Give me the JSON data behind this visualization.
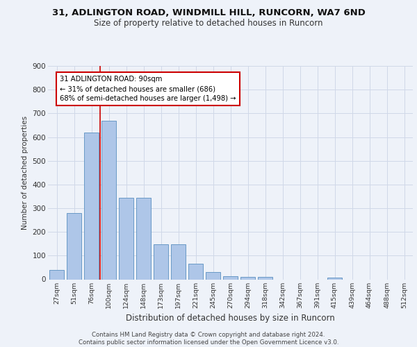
{
  "title1": "31, ADLINGTON ROAD, WINDMILL HILL, RUNCORN, WA7 6ND",
  "title2": "Size of property relative to detached houses in Runcorn",
  "xlabel": "Distribution of detached houses by size in Runcorn",
  "ylabel": "Number of detached properties",
  "categories": [
    "27sqm",
    "51sqm",
    "76sqm",
    "100sqm",
    "124sqm",
    "148sqm",
    "173sqm",
    "197sqm",
    "221sqm",
    "245sqm",
    "270sqm",
    "294sqm",
    "318sqm",
    "342sqm",
    "367sqm",
    "391sqm",
    "415sqm",
    "439sqm",
    "464sqm",
    "488sqm",
    "512sqm"
  ],
  "values": [
    40,
    280,
    620,
    668,
    345,
    345,
    148,
    148,
    65,
    30,
    14,
    11,
    10,
    0,
    0,
    0,
    8,
    0,
    0,
    0,
    0
  ],
  "bar_color": "#aec6e8",
  "bar_edge_color": "#5a8fc0",
  "vline_color": "#cc0000",
  "annotation_text": "31 ADLINGTON ROAD: 90sqm\n← 31% of detached houses are smaller (686)\n68% of semi-detached houses are larger (1,498) →",
  "annotation_box_color": "#ffffff",
  "annotation_box_edge": "#cc0000",
  "grid_color": "#d0d8e8",
  "ylim": [
    0,
    900
  ],
  "yticks": [
    0,
    100,
    200,
    300,
    400,
    500,
    600,
    700,
    800,
    900
  ],
  "footer": "Contains HM Land Registry data © Crown copyright and database right 2024.\nContains public sector information licensed under the Open Government Licence v3.0.",
  "bg_color": "#eef2f9"
}
